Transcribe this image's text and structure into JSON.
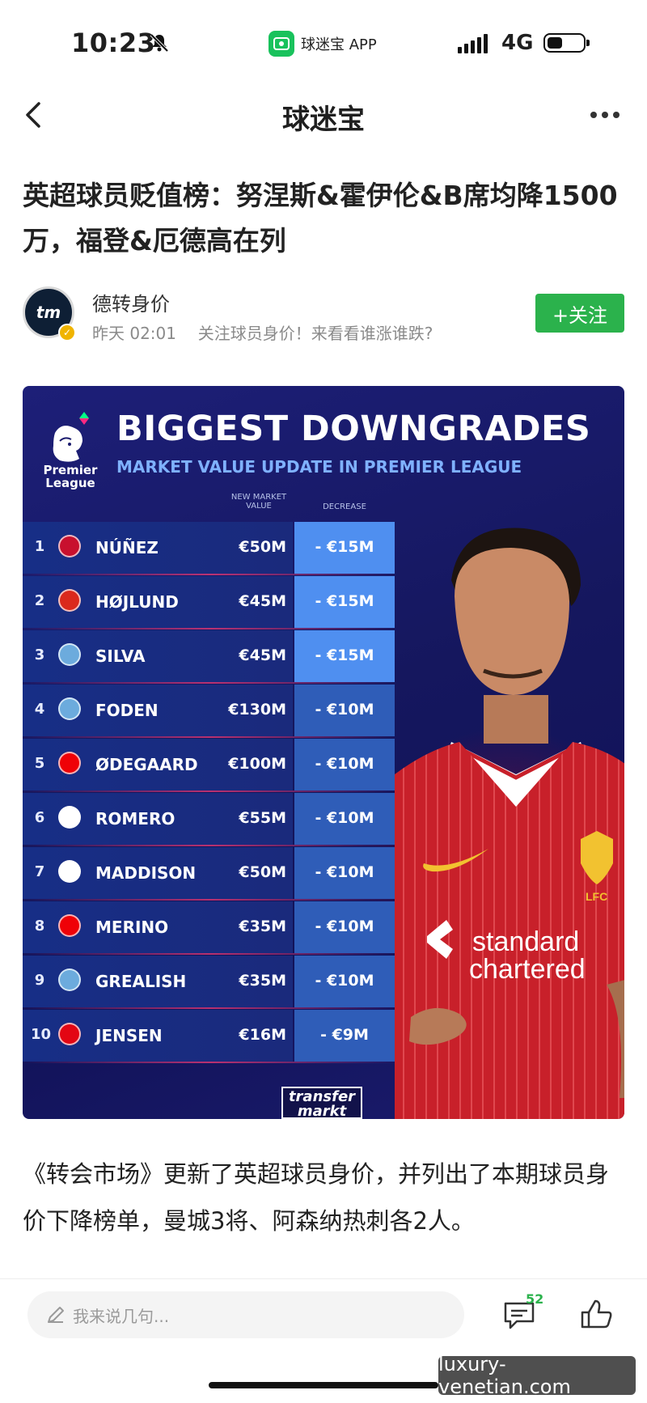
{
  "status_bar": {
    "time": "10:23",
    "app_label": "球迷宝 APP",
    "network": "4G",
    "battery_level": 0.45
  },
  "nav": {
    "title": "球迷宝"
  },
  "article": {
    "title": "英超球员贬值榜：努涅斯&霍伊伦&B席均降1500万，福登&厄德高在列",
    "author_name": "德转身价",
    "author_avatar_text": "tm",
    "published": "昨天 02:01",
    "author_intro": "关注球员身价！来看看谁涨谁跌?",
    "follow_label": "+关注",
    "body": "《转会市场》更新了英超球员身价，并列出了本期球员身价下降榜单，曼城3将、阿森纳热刺各2人。"
  },
  "graphic": {
    "league_label": "Premier League",
    "headline": "BIGGEST DOWNGRADES",
    "subheadline": "MARKET VALUE UPDATE IN PREMIER LEAGUE",
    "col_new_value": "NEW MARKET VALUE",
    "col_decrease": "DECREASE",
    "brand": "transfer markt",
    "rows": [
      {
        "rank": "1",
        "club": "liverpool-crest-icon",
        "name": "NÚÑEZ",
        "value": "€50M",
        "decrease": "- €15M"
      },
      {
        "rank": "2",
        "club": "man-united-crest-icon",
        "name": "HØJLUND",
        "value": "€45M",
        "decrease": "- €15M"
      },
      {
        "rank": "3",
        "club": "man-city-crest-icon",
        "name": "SILVA",
        "value": "€45M",
        "decrease": "- €15M"
      },
      {
        "rank": "4",
        "club": "man-city-crest-icon",
        "name": "FODEN",
        "value": "€130M",
        "decrease": "- €10M"
      },
      {
        "rank": "5",
        "club": "arsenal-crest-icon",
        "name": "ØDEGAARD",
        "value": "€100M",
        "decrease": "- €10M"
      },
      {
        "rank": "6",
        "club": "tottenham-crest-icon",
        "name": "ROMERO",
        "value": "€55M",
        "decrease": "- €10M"
      },
      {
        "rank": "7",
        "club": "tottenham-crest-icon",
        "name": "MADDISON",
        "value": "€50M",
        "decrease": "- €10M"
      },
      {
        "rank": "8",
        "club": "arsenal-crest-icon",
        "name": "MERINO",
        "value": "€35M",
        "decrease": "- €10M"
      },
      {
        "rank": "9",
        "club": "man-city-crest-icon",
        "name": "GREALISH",
        "value": "€35M",
        "decrease": "- €10M"
      },
      {
        "rank": "10",
        "club": "brentford-crest-icon",
        "name": "JENSEN",
        "value": "€16M",
        "decrease": "- €9M"
      }
    ],
    "colors": {
      "decrease_strong": "#4f8ff0",
      "decrease_weak": "#2f5db8",
      "kit_red": "#c8202a",
      "liverpool": "#c8102e",
      "man_united": "#da291c",
      "man_city": "#6cabdd",
      "arsenal": "#ef0107",
      "tottenham": "#ffffff",
      "brentford": "#e30613"
    }
  },
  "comment_bar": {
    "placeholder": "我来说几句...",
    "comment_count": "52"
  },
  "watermark": "luxury-venetian.com",
  "colors": {
    "accent_green": "#2bb24c"
  }
}
